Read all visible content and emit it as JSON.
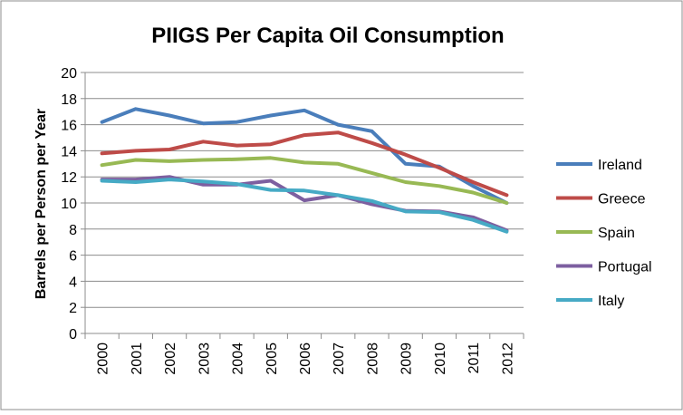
{
  "chart_data": {
    "type": "line",
    "title": "PIIGS Per Capita Oil Consumption",
    "xlabel": "",
    "ylabel": "Barrels per Person per Year",
    "x": [
      "2000",
      "2001",
      "2002",
      "2003",
      "2004",
      "2005",
      "2006",
      "2007",
      "2008",
      "2009",
      "2010",
      "2011",
      "2012"
    ],
    "ylim": [
      0,
      20
    ],
    "yticks": [
      0,
      2,
      4,
      6,
      8,
      10,
      12,
      14,
      16,
      18,
      20
    ],
    "grid": "horizontal",
    "legend": "right",
    "series": [
      {
        "name": "Ireland",
        "color": "#4A7EBB",
        "values": [
          16.2,
          17.2,
          16.7,
          16.1,
          16.2,
          16.7,
          17.1,
          16.0,
          15.5,
          13.0,
          12.8,
          11.3,
          10.0
        ]
      },
      {
        "name": "Greece",
        "color": "#BE4B48",
        "values": [
          13.8,
          14.0,
          14.1,
          14.7,
          14.4,
          14.5,
          15.2,
          15.4,
          14.6,
          13.7,
          12.7,
          11.6,
          10.6
        ]
      },
      {
        "name": "Spain",
        "color": "#98B954",
        "values": [
          12.9,
          13.3,
          13.2,
          13.3,
          13.35,
          13.45,
          13.1,
          13.0,
          12.3,
          11.6,
          11.3,
          10.8,
          10.0
        ]
      },
      {
        "name": "Portugal",
        "color": "#7D5FA0",
        "values": [
          11.8,
          11.8,
          12.0,
          11.4,
          11.4,
          11.7,
          10.2,
          10.6,
          9.9,
          9.4,
          9.35,
          8.9,
          7.9
        ]
      },
      {
        "name": "Italy",
        "color": "#46AAC5",
        "values": [
          11.7,
          11.6,
          11.8,
          11.65,
          11.45,
          11.0,
          10.95,
          10.6,
          10.15,
          9.35,
          9.3,
          8.7,
          7.8
        ]
      }
    ]
  }
}
